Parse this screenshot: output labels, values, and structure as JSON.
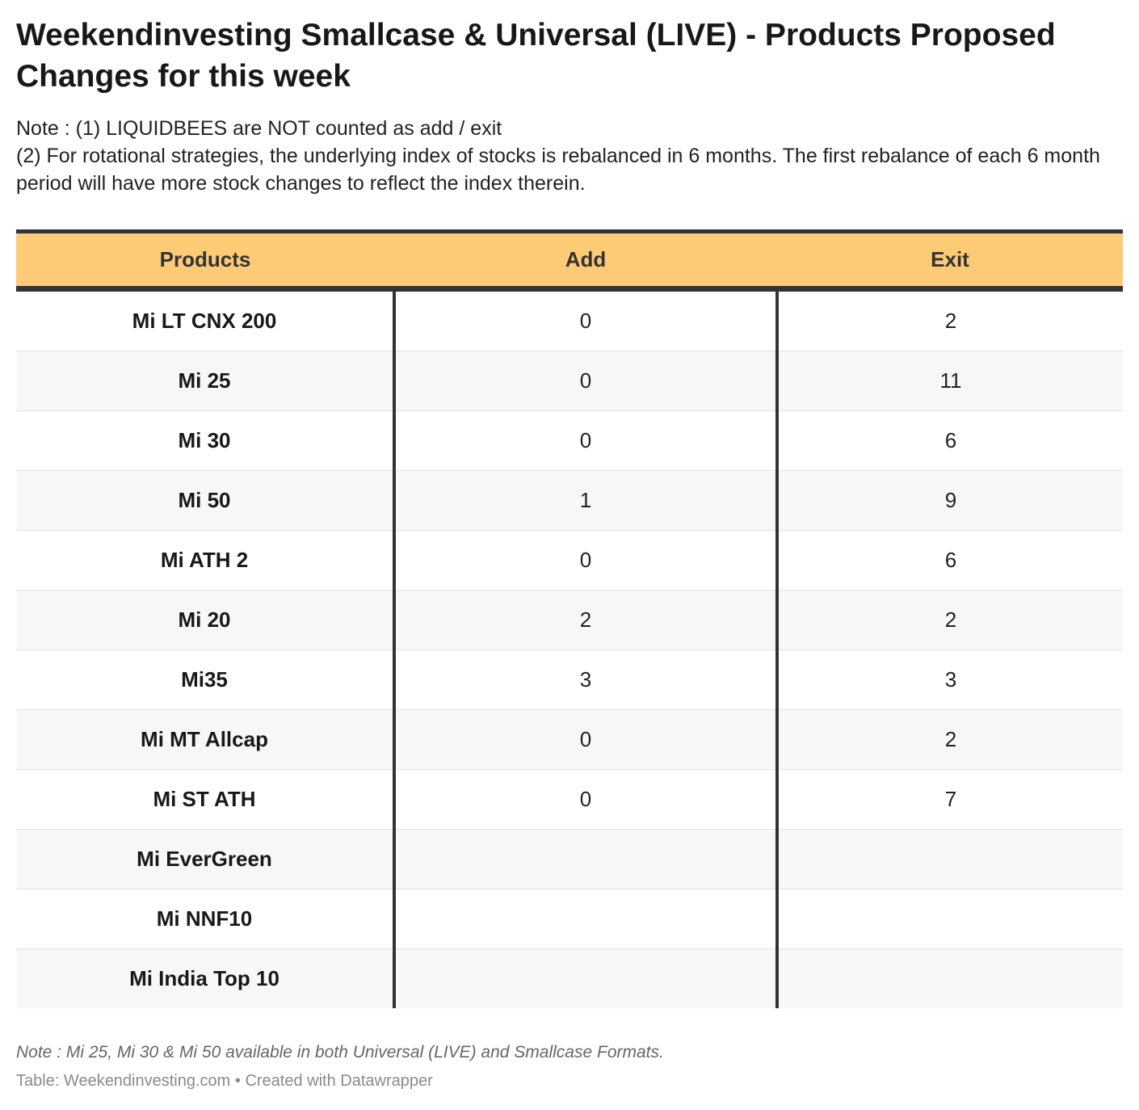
{
  "chart_data": {
    "type": "table",
    "title": "Weekendinvesting Smallcase & Universal (LIVE) - Products Proposed Changes for this week",
    "note_lines": [
      "Note : (1) LIQUIDBEES are NOT counted as add / exit",
      "(2) For rotational strategies, the underlying index of stocks is rebalanced in 6 months. The first rebalance of each 6 month period will have more stock changes to reflect the index therein."
    ],
    "columns": [
      "Products",
      "Add",
      "Exit"
    ],
    "rows": [
      {
        "product": "Mi LT CNX 200",
        "add": "0",
        "exit": "2"
      },
      {
        "product": "Mi 25",
        "add": "0",
        "exit": "11"
      },
      {
        "product": "Mi 30",
        "add": "0",
        "exit": "6"
      },
      {
        "product": "Mi 50",
        "add": "1",
        "exit": "9"
      },
      {
        "product": "Mi ATH 2",
        "add": "0",
        "exit": "6"
      },
      {
        "product": "Mi 20",
        "add": "2",
        "exit": "2"
      },
      {
        "product": "Mi35",
        "add": "3",
        "exit": "3"
      },
      {
        "product": "Mi MT Allcap",
        "add": "0",
        "exit": "2"
      },
      {
        "product": "Mi ST ATH",
        "add": "0",
        "exit": "7"
      },
      {
        "product": "Mi EverGreen",
        "add": "",
        "exit": ""
      },
      {
        "product": "Mi NNF10",
        "add": "",
        "exit": ""
      },
      {
        "product": "Mi India Top 10",
        "add": "",
        "exit": ""
      }
    ],
    "footnote": "Note : Mi 25, Mi 30 & Mi 50 available in both Universal (LIVE) and Smallcase Formats.",
    "source": "Table: Weekendinvesting.com • Created with Datawrapper"
  },
  "colors": {
    "header_bg": "#fdca76",
    "rule": "#333333",
    "stripe": "#f7f7f7"
  }
}
